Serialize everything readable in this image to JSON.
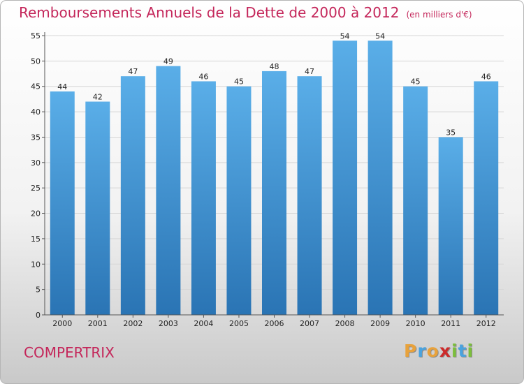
{
  "title": "Remboursements Annuels de la Dette de 2000 à 2012",
  "unit": "(en milliers d'€)",
  "commune": "COMPERTRIX",
  "logo": {
    "letters": [
      "P",
      "r",
      "o",
      "x",
      "i",
      "t",
      "i"
    ],
    "colors": [
      "#e8a23c",
      "#4aa3df",
      "#e8a23c",
      "#cc2a2a",
      "#7bbf3b",
      "#4aa3df",
      "#7bbf3b"
    ]
  },
  "colors": {
    "bar_top": "#5aaee8",
    "bar_bottom": "#2a74b4",
    "title": "#c4265a"
  },
  "chart_data": {
    "type": "bar",
    "title": "Remboursements Annuels de la Dette de 2000 à 2012",
    "ylabel": "(en milliers d'€)",
    "categories": [
      "2000",
      "2001",
      "2002",
      "2003",
      "2004",
      "2005",
      "2006",
      "2007",
      "2008",
      "2009",
      "2010",
      "2011",
      "2012"
    ],
    "values": [
      44,
      42,
      47,
      49,
      46,
      45,
      48,
      47,
      54,
      54,
      45,
      35,
      46
    ],
    "ylim": [
      0,
      55
    ],
    "yticks": [
      0,
      5,
      10,
      15,
      20,
      25,
      30,
      35,
      40,
      45,
      50,
      55
    ],
    "grid": true,
    "legend": "none"
  }
}
